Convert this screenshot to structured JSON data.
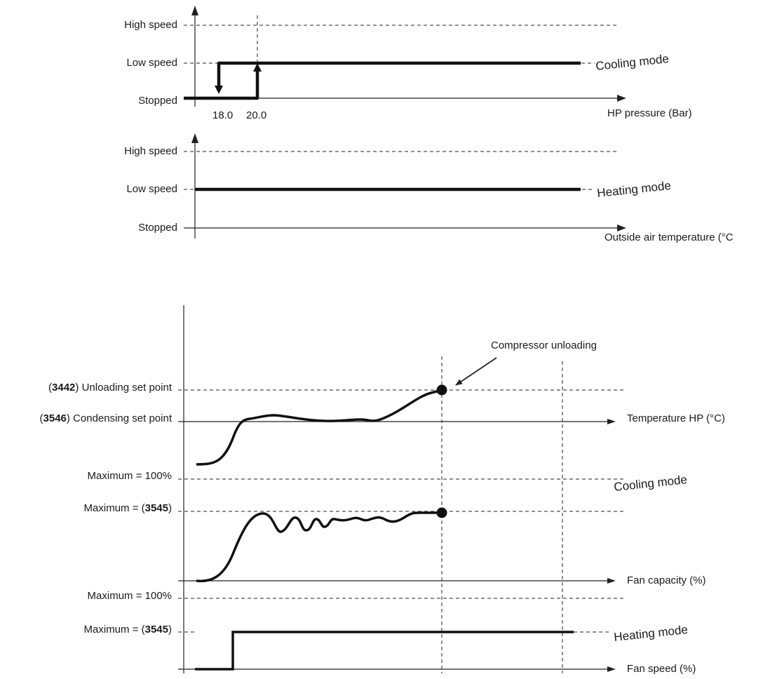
{
  "chart1": {
    "ylabels": {
      "high": "High speed",
      "low": "Low speed",
      "stopped": "Stopped"
    },
    "xlabel": "HP pressure (Bar)",
    "ticks": [
      "18.0",
      "20.0"
    ],
    "mode": "Cooling mode"
  },
  "chart2": {
    "ylabels": {
      "high": "High speed",
      "low": "Low speed",
      "stopped": "Stopped"
    },
    "xlabel": "Outside air temperature (°C",
    "mode": "Heating mode"
  },
  "chart3": {
    "annotation": "Compressor unloading",
    "unloading": {
      "code": "3442",
      "label": ") Unloading set point"
    },
    "condensing": {
      "code": "3546",
      "label": ") Condensing set point"
    },
    "temp_axis": "Temperature HP (°C)",
    "max1": "Maximum = 100%",
    "max2": {
      "prefix": "Maximum = (",
      "code": "3545",
      "suffix": ")"
    },
    "fan_capacity_axis": "Fan capacity (%)",
    "cooling_mode": "Cooling mode",
    "max3": "Maximum = 100%",
    "max4": {
      "prefix": "Maximum = (",
      "code": "3545",
      "suffix": ")"
    },
    "fan_speed_axis": "Fan speed (%)",
    "heating_mode": "Heating mode"
  }
}
